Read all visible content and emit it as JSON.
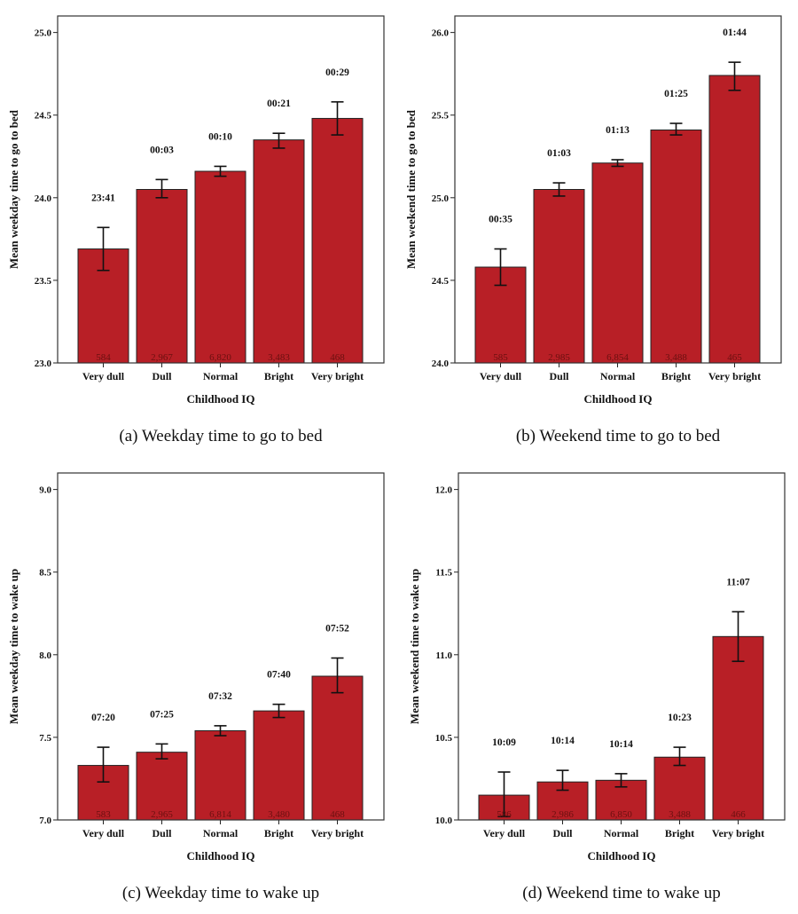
{
  "chart_data": [
    {
      "type": "bar",
      "caption": "(a) Weekday time to go to bed",
      "xlabel": "Childhood IQ",
      "ylabel": "Mean weekday time to go to bed",
      "ylim": [
        23.0,
        25.1
      ],
      "yticks": [
        "23.0",
        "23.5",
        "24.0",
        "24.5",
        "25.0"
      ],
      "categories": [
        "Very dull",
        "Dull",
        "Normal",
        "Bright",
        "Very bright"
      ],
      "values": [
        23.69,
        24.05,
        24.16,
        24.35,
        24.48
      ],
      "error_low": [
        23.56,
        24.0,
        24.13,
        24.3,
        24.38
      ],
      "error_high": [
        23.82,
        24.11,
        24.19,
        24.39,
        24.58
      ],
      "data_labels": [
        "23:41",
        "00:03",
        "00:10",
        "00:21",
        "00:29"
      ],
      "counts": [
        "584",
        "2,967",
        "6,820",
        "3,483",
        "468"
      ],
      "bar_color": "#b81f26"
    },
    {
      "type": "bar",
      "caption": "(b) Weekend time to go to bed",
      "xlabel": "Childhood IQ",
      "ylabel": "Mean weekend time to go to bed",
      "ylim": [
        24.0,
        26.1
      ],
      "yticks": [
        "24.0",
        "24.5",
        "25.0",
        "25.5",
        "26.0"
      ],
      "categories": [
        "Very dull",
        "Dull",
        "Normal",
        "Bright",
        "Very bright"
      ],
      "values": [
        24.58,
        25.05,
        25.21,
        25.41,
        25.74
      ],
      "error_low": [
        24.47,
        25.01,
        25.19,
        25.38,
        25.65
      ],
      "error_high": [
        24.69,
        25.09,
        25.23,
        25.45,
        25.82
      ],
      "data_labels": [
        "00:35",
        "01:03",
        "01:13",
        "01:25",
        "01:44"
      ],
      "counts": [
        "585",
        "2,985",
        "6,854",
        "3,488",
        "465"
      ],
      "bar_color": "#b81f26"
    },
    {
      "type": "bar",
      "caption": "(c) Weekday time to wake up",
      "xlabel": "Childhood IQ",
      "ylabel": "Mean weekday time to wake up",
      "ylim": [
        7.0,
        9.1
      ],
      "yticks": [
        "7.0",
        "7.5",
        "8.0",
        "8.5",
        "9.0"
      ],
      "categories": [
        "Very dull",
        "Dull",
        "Normal",
        "Bright",
        "Very bright"
      ],
      "values": [
        7.33,
        7.41,
        7.54,
        7.66,
        7.87
      ],
      "error_low": [
        7.23,
        7.37,
        7.51,
        7.62,
        7.77
      ],
      "error_high": [
        7.44,
        7.46,
        7.57,
        7.7,
        7.98
      ],
      "data_labels": [
        "07:20",
        "07:25",
        "07:32",
        "07:40",
        "07:52"
      ],
      "counts": [
        "583",
        "2,965",
        "6,814",
        "3,480",
        "468"
      ],
      "bar_color": "#b81f26"
    },
    {
      "type": "bar",
      "caption": "(d) Weekend time to wake up",
      "xlabel": "Childhood IQ",
      "ylabel": "Mean weekend time to wake up",
      "ylim": [
        10.0,
        12.1
      ],
      "yticks": [
        "10.0",
        "10.5",
        "11.0",
        "11.5",
        "12.0"
      ],
      "categories": [
        "Very dull",
        "Dull",
        "Normal",
        "Bright",
        "Very bright"
      ],
      "values": [
        10.15,
        10.23,
        10.24,
        10.38,
        11.11
      ],
      "error_low": [
        10.02,
        10.18,
        10.2,
        10.33,
        10.96
      ],
      "error_high": [
        10.29,
        10.3,
        10.28,
        10.44,
        11.26
      ],
      "data_labels": [
        "10:09",
        "10:14",
        "10:14",
        "10:23",
        "11:07"
      ],
      "counts": [
        "586",
        "2,986",
        "6,850",
        "3,488",
        "466"
      ],
      "bar_color": "#b81f26"
    }
  ]
}
